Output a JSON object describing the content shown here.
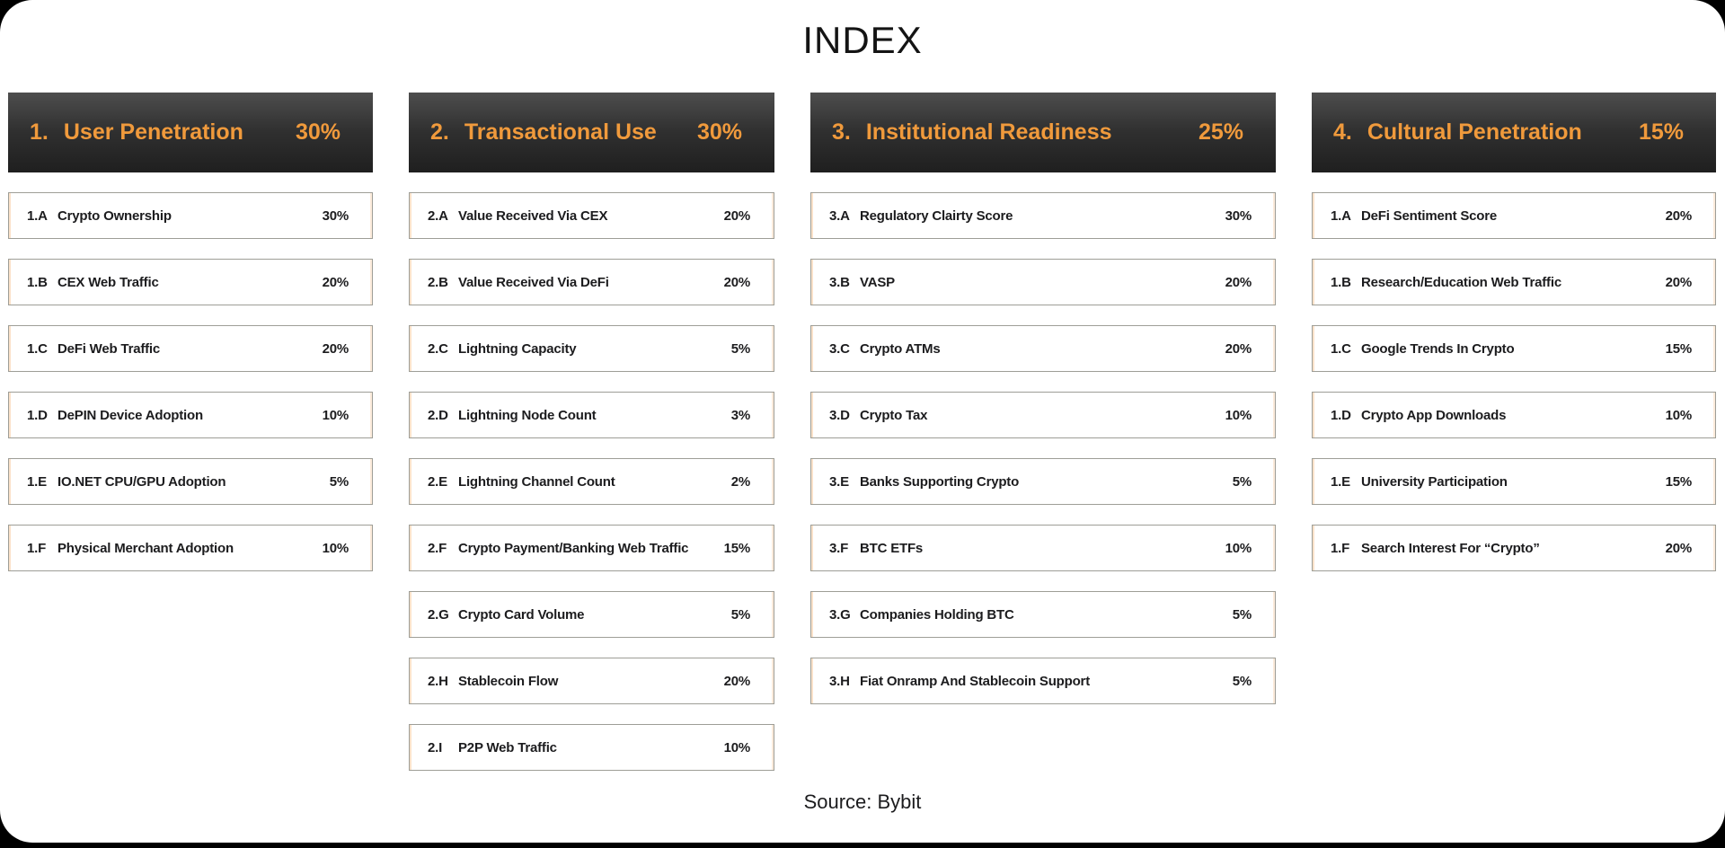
{
  "page": {
    "title": "INDEX",
    "source": "Source: Bybit"
  },
  "colors": {
    "page_bg": "#000000",
    "card_bg": "#FFFFFF",
    "accent_orange": "#F09A3C",
    "header_bg_top": "#4E4E4E",
    "header_bg_bottom": "#1F1F1F",
    "item_border": "#9E9E97",
    "item_text": "#1C1C1E"
  },
  "chart_data": {
    "type": "table",
    "title": "INDEX",
    "source": "Source: Bybit",
    "legend_position": "none",
    "columns": [
      {
        "number": "1.",
        "title": "User Penetration",
        "weight": "30%",
        "items": [
          {
            "code": "1.A",
            "label": "Crypto Ownership",
            "weight": "30%"
          },
          {
            "code": "1.B",
            "label": "CEX Web Traffic",
            "weight": "20%"
          },
          {
            "code": "1.C",
            "label": "DeFi Web Traffic",
            "weight": "20%"
          },
          {
            "code": "1.D",
            "label": "DePIN Device Adoption",
            "weight": "10%"
          },
          {
            "code": "1.E",
            "label": "IO.NET CPU/GPU Adoption",
            "weight": "5%"
          },
          {
            "code": "1.F",
            "label": "Physical Merchant Adoption",
            "weight": "10%"
          }
        ]
      },
      {
        "number": "2.",
        "title": "Transactional Use",
        "weight": "30%",
        "items": [
          {
            "code": "2.A",
            "label": "Value Received Via CEX",
            "weight": "20%"
          },
          {
            "code": "2.B",
            "label": "Value Received Via DeFi",
            "weight": "20%"
          },
          {
            "code": "2.C",
            "label": "Lightning Capacity",
            "weight": "5%"
          },
          {
            "code": "2.D",
            "label": "Lightning Node Count",
            "weight": "3%"
          },
          {
            "code": "2.E",
            "label": "Lightning Channel Count",
            "weight": "2%"
          },
          {
            "code": "2.F",
            "label": "Crypto Payment/Banking Web Traffic",
            "weight": "15%"
          },
          {
            "code": "2.G",
            "label": "Crypto Card Volume",
            "weight": "5%"
          },
          {
            "code": "2.H",
            "label": "Stablecoin Flow",
            "weight": "20%"
          },
          {
            "code": "2.I",
            "label": "P2P Web Traffic",
            "weight": "10%"
          }
        ]
      },
      {
        "number": "3.",
        "title": "Institutional Readiness",
        "weight": "25%",
        "items": [
          {
            "code": "3.A",
            "label": "Regulatory Clairty Score",
            "weight": "30%"
          },
          {
            "code": "3.B",
            "label": "VASP",
            "weight": "20%"
          },
          {
            "code": "3.C",
            "label": "Crypto ATMs",
            "weight": "20%"
          },
          {
            "code": "3.D",
            "label": "Crypto Tax",
            "weight": "10%"
          },
          {
            "code": "3.E",
            "label": "Banks Supporting Crypto",
            "weight": "5%"
          },
          {
            "code": "3.F",
            "label": "BTC ETFs",
            "weight": "10%"
          },
          {
            "code": "3.G",
            "label": "Companies Holding BTC",
            "weight": "5%"
          },
          {
            "code": "3.H",
            "label": "Fiat Onramp And Stablecoin Support",
            "weight": "5%"
          }
        ]
      },
      {
        "number": "4.",
        "title": "Cultural Penetration",
        "weight": "15%",
        "items": [
          {
            "code": "1.A",
            "label": "DeFi Sentiment Score",
            "weight": "20%"
          },
          {
            "code": "1.B",
            "label": "Research/Education Web Traffic",
            "weight": "20%"
          },
          {
            "code": "1.C",
            "label": "Google Trends In Crypto",
            "weight": "15%"
          },
          {
            "code": "1.D",
            "label": "Crypto App Downloads",
            "weight": "10%"
          },
          {
            "code": "1.E",
            "label": "University Participation",
            "weight": "15%"
          },
          {
            "code": "1.F",
            "label": "Search Interest For “Crypto”",
            "weight": "20%"
          }
        ]
      }
    ]
  }
}
